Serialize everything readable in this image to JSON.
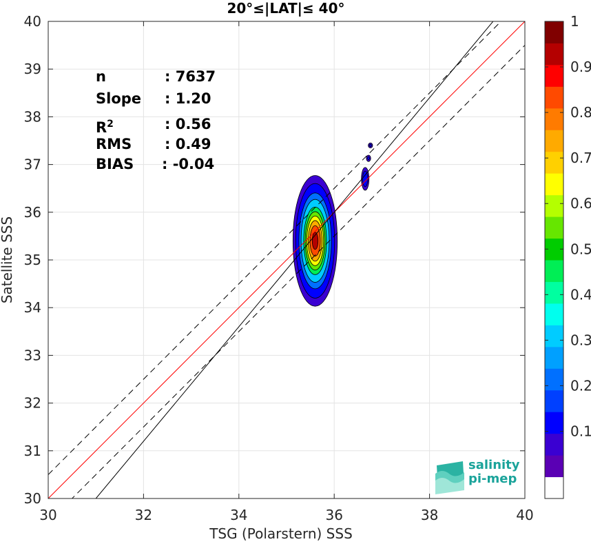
{
  "chart_data": {
    "type": "heatmap",
    "title": "20°≤|LAT|≤ 40°",
    "xlabel": "TSG (Polarstern) SSS",
    "ylabel": "Satellite SSS",
    "xlim": [
      30,
      40
    ],
    "ylim": [
      30,
      40
    ],
    "xticks": [
      30,
      32,
      34,
      36,
      38,
      40
    ],
    "yticks": [
      30,
      31,
      32,
      33,
      34,
      35,
      36,
      37,
      38,
      39,
      40
    ],
    "grid": true,
    "colorbar": {
      "range": [
        0,
        1
      ],
      "ticks": [
        "0.1",
        "0.2",
        "0.3",
        "0.4",
        "0.5",
        "0.6",
        "0.7",
        "0.8",
        "0.9",
        "1"
      ],
      "levels": [
        0,
        0.05,
        0.1,
        0.15,
        0.2,
        0.25,
        0.3,
        0.35,
        0.4,
        0.45,
        0.5,
        0.55,
        0.6,
        0.65,
        0.7,
        0.75,
        0.8,
        0.85,
        0.9,
        0.95,
        1.0
      ],
      "colors": [
        "#ffffff",
        "#5a00b4",
        "#3a00d2",
        "#0000ff",
        "#0040ff",
        "#0070ff",
        "#00a0ff",
        "#00ccff",
        "#00ffee",
        "#00ffa0",
        "#00ee55",
        "#00cc00",
        "#66e600",
        "#b4ff00",
        "#ffff00",
        "#ffd000",
        "#ffaa00",
        "#ff7b00",
        "#ff4a00",
        "#ff0000",
        "#b40000",
        "#800000"
      ]
    },
    "lines": [
      {
        "name": "1:1",
        "color": "#ff0000",
        "style": "solid",
        "points": [
          [
            30,
            30
          ],
          [
            40,
            40
          ]
        ]
      },
      {
        "name": "regression",
        "color": "#000000",
        "style": "solid",
        "points": [
          [
            31.0,
            30.0
          ],
          [
            40.0,
            40.8
          ]
        ]
      },
      {
        "name": "upper bound",
        "color": "#000000",
        "style": "dashed",
        "points": [
          [
            30,
            30.5
          ],
          [
            40,
            40.5
          ]
        ]
      },
      {
        "name": "lower bound",
        "color": "#000000",
        "style": "dashed",
        "points": [
          [
            30,
            29.5
          ],
          [
            40,
            39.5
          ]
        ]
      }
    ],
    "clusters": [
      {
        "center": [
          35.6,
          35.4
        ],
        "spread": [
          0.38,
          1.12
        ],
        "peak": 1.0,
        "fill_levels": [
          0.05,
          0.1,
          0.2,
          0.3,
          0.45,
          0.55,
          0.65,
          0.75,
          0.85,
          0.95
        ]
      },
      {
        "center": [
          36.65,
          36.7
        ],
        "spread": [
          0.1,
          0.3
        ],
        "peak": 0.18,
        "fill_levels": [
          0.05,
          0.1
        ]
      },
      {
        "center": [
          36.72,
          37.13
        ],
        "spread": [
          0.07,
          0.1
        ],
        "peak": 0.12,
        "fill_levels": [
          0.05,
          0.1
        ]
      },
      {
        "center": [
          36.76,
          37.4
        ],
        "spread": [
          0.07,
          0.08
        ],
        "peak": 0.12,
        "fill_levels": [
          0.05,
          0.1
        ]
      }
    ]
  },
  "stats": [
    {
      "label": "n",
      "value": ": 7637"
    },
    {
      "label": "Slope",
      "value": ": 1.20"
    },
    {
      "label": "R",
      "sup": "2",
      "value": ": 0.56"
    },
    {
      "label": "RMS",
      "value": ": 0.49"
    },
    {
      "label": "BIAS",
      "value": ": -0.04"
    }
  ],
  "logo": {
    "line1": "salinity",
    "line2": "pi-mep",
    "color": "#1aa39a"
  }
}
